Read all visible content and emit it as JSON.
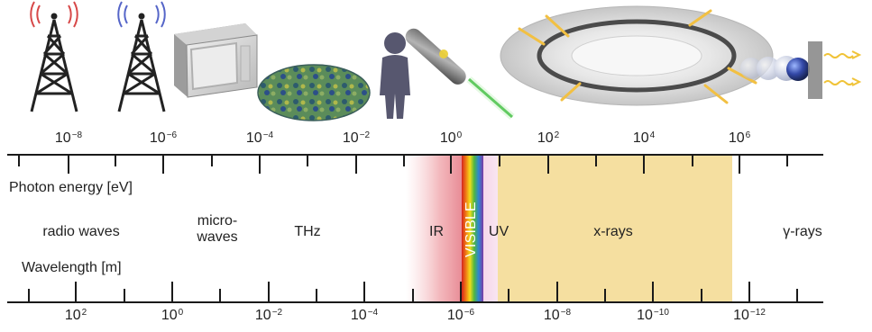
{
  "axes": {
    "photon_energy_label": "Photon energy [eV]",
    "wavelength_label": "Wavelength [m]",
    "photon_energy_ticks": [
      {
        "base": "10",
        "exp": "−8"
      },
      {
        "base": "10",
        "exp": "−6"
      },
      {
        "base": "10",
        "exp": "−4"
      },
      {
        "base": "10",
        "exp": "−2"
      },
      {
        "base": "10",
        "exp": "0"
      },
      {
        "base": "10",
        "exp": "2"
      },
      {
        "base": "10",
        "exp": "4"
      },
      {
        "base": "10",
        "exp": "6"
      }
    ],
    "wavelength_ticks": [
      {
        "base": "10",
        "exp": "2"
      },
      {
        "base": "10",
        "exp": "0"
      },
      {
        "base": "10",
        "exp": "−2"
      },
      {
        "base": "10",
        "exp": "−4"
      },
      {
        "base": "10",
        "exp": "−6"
      },
      {
        "base": "10",
        "exp": "−8"
      },
      {
        "base": "10",
        "exp": "−10"
      },
      {
        "base": "10",
        "exp": "−12"
      }
    ]
  },
  "bands": {
    "radio": "radio waves",
    "micro_1": "micro-",
    "micro_2": "waves",
    "thz": "THz",
    "ir": "IR",
    "visible": "VISIBLE",
    "uv": "UV",
    "xray": "x-rays",
    "gamma": "γ-rays"
  },
  "icons": [
    "radio-tower-icon",
    "radio-tower-icon",
    "microwave-oven-icon",
    "cosmic-microwave-background-icon",
    "human-figure-icon",
    "laser-pointer-icon",
    "synchrotron-ring-icon",
    "particle-collision-icon"
  ],
  "colors": {
    "axis": "#1a1a1a",
    "infrared_glow": "#f2b1b6",
    "ultraviolet_tint": "#f4d6ea",
    "xray_band": "#f5dfa0",
    "visible_spectrum": [
      "#d5241d",
      "#f07c16",
      "#f3dd19",
      "#4eb642",
      "#2e86d1",
      "#7b39a3"
    ]
  }
}
